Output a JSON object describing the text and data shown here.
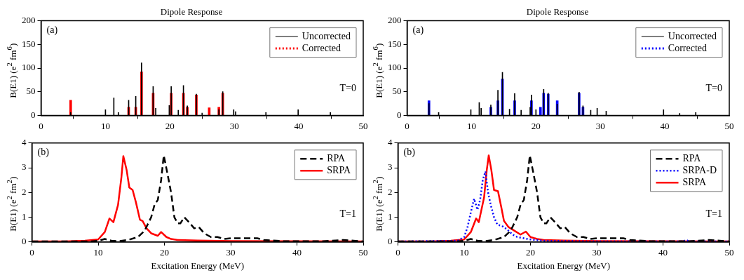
{
  "chart_data": [
    {
      "type": "bar",
      "title": "Dipole Response",
      "ylabel": "B(E1) (e$^{2}$ fm$^{6}$)",
      "xlim": [
        0,
        50
      ],
      "xticks": [
        0,
        10,
        20,
        30,
        40,
        50
      ],
      "ylim": [
        0,
        200
      ],
      "yticks": [
        0,
        50,
        100,
        150,
        200
      ],
      "legend": "top right",
      "annotations": [
        "(a)",
        "T=0"
      ],
      "series": [
        {
          "name": "Uncorrected",
          "color": "#000000",
          "x": [
            4.6,
            10.0,
            11.3,
            12.0,
            13.6,
            14.7,
            15.6,
            17.4,
            17.8,
            19.9,
            20.2,
            21.3,
            22.1,
            22.7,
            24.1,
            25.0,
            27.6,
            28.2,
            29.9,
            30.2,
            34.9,
            39.9,
            44.9
          ],
          "values": [
            6,
            12,
            37,
            6,
            32,
            40,
            111,
            61,
            15,
            21,
            61,
            11,
            63,
            20,
            45,
            5,
            12,
            50,
            12,
            8,
            6,
            12,
            6
          ]
        },
        {
          "name": "Corrected",
          "color": "#ff0000",
          "line_style": "dotted",
          "x": [
            4.6,
            13.6,
            14.7,
            15.6,
            17.4,
            20.2,
            22.1,
            22.7,
            24.1,
            26.1,
            27.6,
            28.2
          ],
          "values": [
            32,
            17,
            17,
            92,
            47,
            47,
            47,
            17,
            43,
            16,
            17,
            47
          ]
        }
      ]
    },
    {
      "type": "bar",
      "title": "Dipole Response",
      "ylabel": "B(E1) (e$^{2}$ fm$^{6}$)",
      "xlim": [
        0,
        50
      ],
      "xticks": [
        0,
        10,
        20,
        30,
        40,
        50
      ],
      "ylim": [
        0,
        200
      ],
      "yticks": [
        0,
        50,
        100,
        150,
        200
      ],
      "legend": "top right",
      "annotations": [
        "(a)",
        "T=0"
      ],
      "series": [
        {
          "name": "Uncorrected",
          "color": "#000000",
          "x": [
            3.4,
            4.9,
            9.9,
            11.2,
            11.5,
            13.0,
            14.1,
            14.8,
            15.9,
            16.7,
            17.7,
            19.1,
            19.3,
            20.0,
            21.2,
            21.9,
            23.3,
            26.7,
            27.3,
            28.5,
            29.5,
            30.9,
            39.8,
            42.3,
            44.8
          ],
          "values": [
            25,
            6,
            12,
            27,
            15,
            22,
            53,
            91,
            13,
            46,
            11,
            17,
            43,
            12,
            55,
            47,
            24,
            49,
            20,
            11,
            15,
            9,
            12,
            4,
            6
          ]
        },
        {
          "name": "Corrected",
          "color": "#0000ff",
          "line_style": "dotted",
          "x": [
            3.4,
            13.0,
            14.1,
            14.8,
            16.7,
            19.3,
            20.7,
            21.2,
            21.9,
            23.3,
            26.7,
            27.3
          ],
          "values": [
            31,
            17,
            31,
            77,
            31,
            31,
            17,
            47,
            45,
            31,
            47,
            17
          ]
        }
      ]
    },
    {
      "type": "line",
      "xlabel": "Excitation Energy (MeV)",
      "ylabel": "B(E1) (e$^{2}$ fm$^{2}$)",
      "xlim": [
        0,
        50
      ],
      "xticks": [
        0,
        10,
        20,
        30,
        40,
        50
      ],
      "ylim": [
        0,
        4
      ],
      "yticks": [
        0,
        1,
        2,
        3,
        4
      ],
      "legend": "top right",
      "annotations": [
        "(b)",
        "T=1"
      ],
      "series": [
        {
          "name": "RPA",
          "color": "#000000",
          "line_style": "dashed",
          "x": [
            0,
            9,
            10,
            11,
            12,
            13,
            14.5,
            16,
            17,
            18,
            18.5,
            19,
            19.5,
            19.9,
            20.5,
            21,
            21.5,
            22,
            22.4,
            23,
            23.7,
            24.5,
            25.2,
            26,
            27,
            28,
            29,
            30,
            32,
            34,
            35,
            38,
            44,
            47,
            50
          ],
          "values": [
            0.02,
            0.02,
            0.05,
            0.12,
            0.05,
            0.03,
            0.08,
            0.2,
            0.45,
            1.0,
            1.5,
            1.7,
            2.5,
            3.5,
            2.7,
            2.0,
            1.0,
            0.75,
            0.75,
            1.0,
            0.8,
            0.55,
            0.6,
            0.35,
            0.2,
            0.2,
            0.12,
            0.15,
            0.15,
            0.15,
            0.08,
            0.03,
            0.03,
            0.08,
            0.02
          ]
        },
        {
          "name": "SRPA",
          "color": "#ff0000",
          "line_style": "solid",
          "x": [
            0,
            5,
            8,
            10,
            11,
            11.7,
            12.3,
            13,
            13.5,
            13.8,
            14.3,
            14.7,
            15.2,
            15.7,
            16.3,
            16.7,
            17.3,
            18,
            19,
            19.5,
            20.3,
            21,
            22,
            25,
            30,
            40,
            50
          ],
          "values": [
            0.02,
            0.02,
            0.05,
            0.1,
            0.4,
            0.95,
            0.8,
            1.5,
            2.6,
            3.47,
            2.9,
            2.2,
            2.1,
            1.6,
            0.9,
            0.85,
            0.55,
            0.35,
            0.25,
            0.4,
            0.2,
            0.12,
            0.08,
            0.06,
            0.04,
            0.03,
            0.02
          ]
        }
      ]
    },
    {
      "type": "line",
      "xlabel": "Excitation Energy (MeV)",
      "ylabel": "B(E1) (e$^{2}$ fm$^{2}$)",
      "xlim": [
        0,
        50
      ],
      "xticks": [
        0,
        10,
        20,
        30,
        40,
        50
      ],
      "ylim": [
        0,
        4
      ],
      "yticks": [
        0,
        1,
        2,
        3,
        4
      ],
      "legend": "top right",
      "annotations": [
        "(b)",
        "T=1"
      ],
      "series": [
        {
          "name": "RPA",
          "color": "#000000",
          "line_style": "dashed",
          "x": [
            0,
            9,
            10,
            11,
            12,
            13,
            14.5,
            16,
            17,
            18,
            18.5,
            19,
            19.5,
            19.9,
            20.5,
            21,
            21.5,
            22,
            22.4,
            23,
            23.7,
            24.5,
            25.2,
            26,
            27,
            28,
            29,
            30,
            32,
            34,
            35,
            38,
            44,
            47,
            50
          ],
          "values": [
            0.02,
            0.02,
            0.05,
            0.12,
            0.05,
            0.03,
            0.08,
            0.2,
            0.45,
            1.0,
            1.5,
            1.7,
            2.5,
            3.5,
            2.7,
            2.0,
            1.0,
            0.75,
            0.75,
            1.0,
            0.8,
            0.55,
            0.6,
            0.35,
            0.2,
            0.2,
            0.12,
            0.15,
            0.15,
            0.15,
            0.08,
            0.03,
            0.03,
            0.08,
            0.02
          ]
        },
        {
          "name": "SRPA-D",
          "color": "#0000ff",
          "line_style": "dotted",
          "x": [
            0,
            9,
            10,
            10.5,
            11,
            11.5,
            12,
            12.4,
            12.8,
            13.2,
            13.6,
            14,
            14.5,
            15,
            15.7,
            16.5,
            17.3,
            18,
            19,
            20,
            22,
            30,
            43,
            43.5,
            44,
            50
          ],
          "values": [
            0.02,
            0.05,
            0.2,
            0.6,
            1.2,
            1.75,
            1.3,
            1.7,
            2.5,
            2.85,
            2.0,
            1.5,
            1.0,
            0.7,
            0.65,
            0.5,
            0.3,
            0.2,
            0.15,
            0.1,
            0.05,
            0.02,
            0.02,
            0.08,
            0.02,
            0.02
          ]
        },
        {
          "name": "SRPA",
          "color": "#ff0000",
          "line_style": "solid",
          "x": [
            0,
            5,
            8,
            10,
            11,
            11.8,
            12.2,
            13,
            13.4,
            13.7,
            14.1,
            14.5,
            15.1,
            15.6,
            16,
            16.7,
            17.3,
            18.5,
            19.3,
            20,
            21,
            22,
            25,
            30,
            40,
            50
          ],
          "values": [
            0.02,
            0.02,
            0.05,
            0.1,
            0.4,
            0.95,
            0.8,
            1.8,
            2.9,
            3.5,
            2.9,
            2.1,
            2.05,
            1.4,
            0.85,
            0.6,
            0.5,
            0.3,
            0.42,
            0.2,
            0.12,
            0.08,
            0.06,
            0.04,
            0.03,
            0.02
          ]
        }
      ]
    }
  ]
}
